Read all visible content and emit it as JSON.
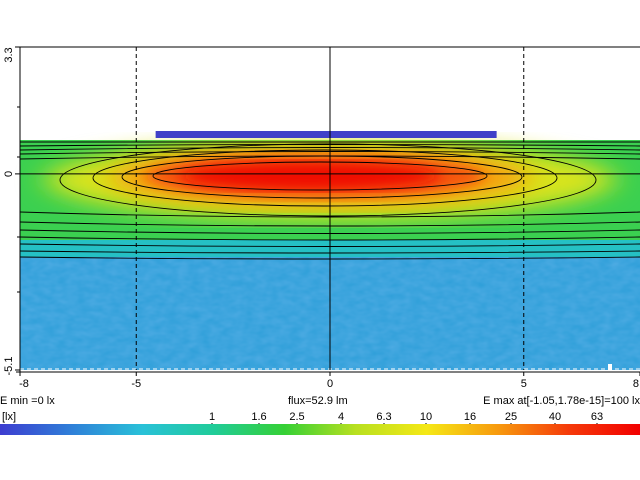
{
  "chart_data": {
    "type": "heatmap",
    "x_ticks": [
      -8,
      -5,
      0,
      5,
      8
    ],
    "y_ticks": [
      3.3,
      0,
      -5.1
    ],
    "xlim": [
      -8,
      8
    ],
    "ylim": [
      -5.1,
      3.3
    ],
    "grid": {
      "vertical_lines_x": [
        -5,
        0,
        5
      ],
      "horizontal_lines_y": [
        0
      ]
    },
    "source_bar": {
      "x_from": -4.5,
      "x_to": 4.3,
      "color": "#4040c8"
    },
    "stats": {
      "e_min": "E min =0 lx",
      "flux": "flux=52.9 lm",
      "e_max": "E max at[-1.05,1.78e-15]=100 lx"
    },
    "colorbar": {
      "unit_label": "[lx]",
      "ticks": [
        "1",
        "1.6",
        "2.5",
        "4",
        "6.3",
        "10",
        "16",
        "25",
        "40",
        "63"
      ],
      "colors": [
        "#3d3dd0",
        "#2f7fd8",
        "#29c1d8",
        "#20cc99",
        "#35d035",
        "#b8e020",
        "#f5e816",
        "#f79a0e",
        "#f53a0a",
        "#f20000"
      ]
    }
  }
}
